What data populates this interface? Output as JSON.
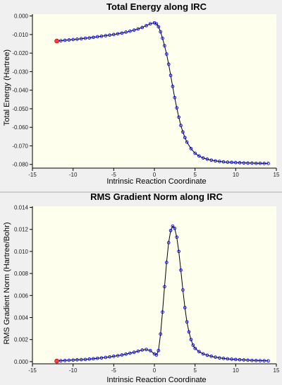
{
  "chart_data": [
    {
      "type": "line",
      "title": "Total Energy along IRC",
      "xlabel": "Intrinsic Reaction Coordinate",
      "ylabel": "Total Energy (Hartree)",
      "xlim": [
        -15,
        15
      ],
      "ylim": [
        -0.082,
        0.001
      ],
      "xticks": [
        -15,
        -10,
        -5,
        0,
        5,
        10,
        15
      ],
      "yticks": [
        0,
        -0.01,
        -0.02,
        -0.03,
        -0.04,
        -0.05,
        -0.06,
        -0.07,
        -0.08
      ],
      "ytick_labels": [
        "0.000",
        "-0.010",
        "-0.020",
        "-0.030",
        "-0.040",
        "-0.050",
        "-0.060",
        "-0.070",
        "-0.080"
      ],
      "highlight_point": {
        "x": -12.0,
        "y": -0.0135
      },
      "series": [
        {
          "x": [
            -12.0,
            -11.5,
            -11.0,
            -10.5,
            -10.0,
            -9.5,
            -9.0,
            -8.5,
            -8.0,
            -7.5,
            -7.0,
            -6.5,
            -6.0,
            -5.5,
            -5.0,
            -4.5,
            -4.0,
            -3.5,
            -3.0,
            -2.5,
            -2.0,
            -1.5,
            -1.0,
            -0.5,
            0.0,
            0.25,
            0.5,
            0.75,
            1.0,
            1.25,
            1.5,
            1.75,
            2.0,
            2.25,
            2.5,
            2.75,
            3.0,
            3.25,
            3.5,
            3.75,
            4.0,
            4.5,
            5.0,
            5.5,
            6.0,
            6.5,
            7.0,
            7.5,
            8.0,
            8.5,
            9.0,
            9.5,
            10.0,
            10.5,
            11.0,
            11.5,
            12.0,
            12.5,
            13.0,
            13.5,
            14.0
          ],
          "y": [
            -0.0135,
            -0.0133,
            -0.0131,
            -0.0129,
            -0.0127,
            -0.0125,
            -0.0122,
            -0.012,
            -0.0118,
            -0.0115,
            -0.0112,
            -0.0109,
            -0.0106,
            -0.0103,
            -0.01,
            -0.0096,
            -0.0092,
            -0.0087,
            -0.0082,
            -0.0076,
            -0.007,
            -0.0062,
            -0.0052,
            -0.0042,
            -0.0037,
            -0.0042,
            -0.0058,
            -0.0085,
            -0.012,
            -0.016,
            -0.0205,
            -0.026,
            -0.032,
            -0.038,
            -0.044,
            -0.0495,
            -0.0545,
            -0.059,
            -0.0625,
            -0.0655,
            -0.068,
            -0.0715,
            -0.074,
            -0.0755,
            -0.0765,
            -0.0772,
            -0.0777,
            -0.0781,
            -0.0784,
            -0.0786,
            -0.0788,
            -0.0789,
            -0.079,
            -0.0791,
            -0.0792,
            -0.0793,
            -0.0793,
            -0.0794,
            -0.0794,
            -0.0795,
            -0.0795
          ]
        }
      ]
    },
    {
      "type": "line",
      "title": "RMS Gradient Norm along IRC",
      "xlabel": "Intrinsic Reaction Coordinate",
      "ylabel": "RMS Gradient Norm (Hartree/Bohr)",
      "xlim": [
        -15,
        15
      ],
      "ylim": [
        -0.0002,
        0.0141
      ],
      "xticks": [
        -15,
        -10,
        -5,
        0,
        5,
        10,
        15
      ],
      "yticks": [
        0,
        0.002,
        0.004,
        0.006,
        0.008,
        0.01,
        0.012,
        0.014
      ],
      "ytick_labels": [
        "0.000",
        "0.002",
        "0.004",
        "0.006",
        "0.008",
        "0.010",
        "0.012",
        "0.014"
      ],
      "highlight_point": {
        "x": -12.0,
        "y": 5e-05
      },
      "series": [
        {
          "x": [
            -12.0,
            -11.5,
            -11.0,
            -10.5,
            -10.0,
            -9.5,
            -9.0,
            -8.5,
            -8.0,
            -7.5,
            -7.0,
            -6.5,
            -6.0,
            -5.5,
            -5.0,
            -4.5,
            -4.0,
            -3.5,
            -3.0,
            -2.5,
            -2.0,
            -1.5,
            -1.0,
            -0.5,
            0.0,
            0.25,
            0.5,
            0.75,
            1.0,
            1.25,
            1.5,
            1.75,
            2.0,
            2.25,
            2.5,
            2.75,
            3.0,
            3.25,
            3.5,
            3.75,
            4.0,
            4.25,
            4.5,
            4.75,
            5.0,
            5.5,
            6.0,
            6.5,
            7.0,
            7.5,
            8.0,
            8.5,
            9.0,
            9.5,
            10.0,
            10.5,
            11.0,
            11.5,
            12.0,
            12.5,
            13.0,
            13.5,
            14.0
          ],
          "y": [
            5e-05,
            8e-05,
            0.0001,
            0.00012,
            0.00014,
            0.00016,
            0.00018,
            0.0002,
            0.00023,
            0.00026,
            0.0003,
            0.00034,
            0.00038,
            0.00043,
            0.00048,
            0.00054,
            0.0006,
            0.00068,
            0.00076,
            0.00085,
            0.00095,
            0.00105,
            0.0011,
            0.001,
            0.0007,
            0.0006,
            0.001,
            0.0025,
            0.0045,
            0.0068,
            0.009,
            0.0108,
            0.0119,
            0.0123,
            0.0121,
            0.0113,
            0.01,
            0.0083,
            0.0065,
            0.0049,
            0.0036,
            0.0027,
            0.002,
            0.0015,
            0.0012,
            0.0009,
            0.0007,
            0.00058,
            0.00048,
            0.0004,
            0.00034,
            0.00029,
            0.00025,
            0.00022,
            0.00019,
            0.00017,
            0.00015,
            0.00013,
            0.00011,
            0.0001,
            9e-05,
            8e-05,
            7e-05
          ]
        }
      ]
    }
  ],
  "colors": {
    "background": "#f0f0f0",
    "plot_area": "#ffffee",
    "line": "#000000",
    "marker": "#0000ff",
    "highlight": "#ff3b3b",
    "axis": "#000000",
    "grid": "#b8b8b8"
  }
}
